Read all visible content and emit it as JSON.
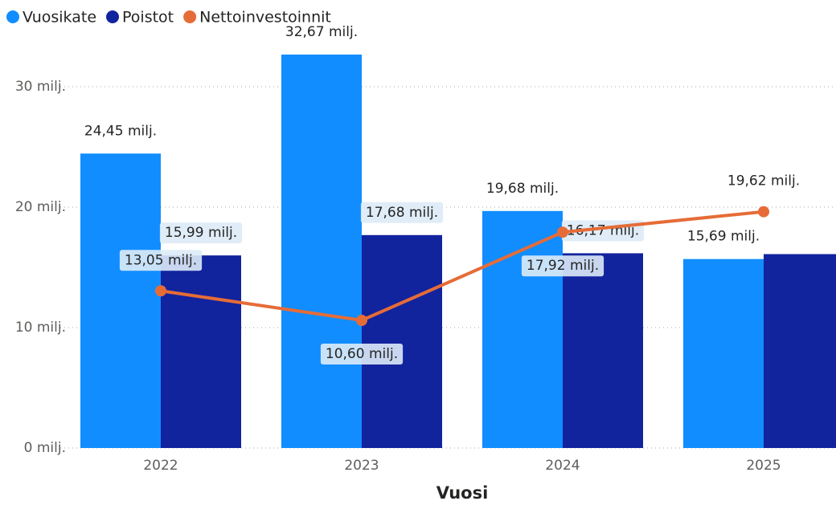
{
  "chart_data": {
    "type": "bar_line_combo",
    "x_label": "Vuosi",
    "categories": [
      "2022",
      "2023",
      "2024",
      "2025"
    ],
    "series": [
      {
        "name": "Vuosikate",
        "type": "bar",
        "color": "#118DFF",
        "values": [
          24.45,
          32.67,
          19.68,
          15.69
        ],
        "value_labels": [
          "24,45 milj.",
          "32,67 milj.",
          "19,68 milj.",
          "15,69 milj."
        ]
      },
      {
        "name": "Poistot",
        "type": "bar",
        "color": "#12239E",
        "values": [
          15.99,
          17.68,
          16.17,
          16.1
        ],
        "value_labels": [
          "15,99 milj.",
          "17,68 milj.",
          "16,17 milj.",
          null
        ]
      },
      {
        "name": "Nettoinvestoinnit",
        "type": "line",
        "color": "#E66C37",
        "values": [
          13.05,
          10.6,
          17.92,
          19.62
        ],
        "value_labels": [
          "13,05 milj.",
          "10,60 milj.",
          "17,92 milj.",
          "19,62 milj."
        ]
      }
    ],
    "ylim": [
      0,
      33
    ],
    "yticks": [
      {
        "value": 0,
        "label": "0 milj."
      },
      {
        "value": 10,
        "label": "10 milj."
      },
      {
        "value": 20,
        "label": "20 milj."
      },
      {
        "value": 30,
        "label": "30 milj."
      }
    ],
    "grid": true,
    "legend": "top-left"
  }
}
